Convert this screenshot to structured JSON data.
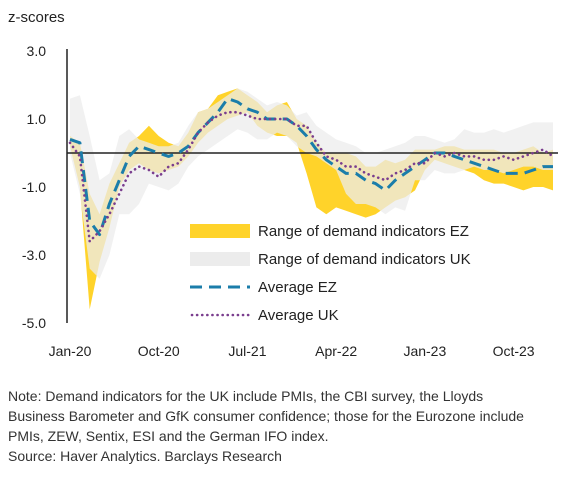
{
  "chart_data": {
    "type": "area",
    "ylabel": "z-scores",
    "ylim": [
      -5.0,
      3.0
    ],
    "yticks": [
      3.0,
      1.0,
      -1.0,
      -3.0,
      -5.0
    ],
    "ytick_labels": [
      "3.0",
      "1.0",
      "-1.0",
      "-3.0",
      "-5.0"
    ],
    "xtick_labels": [
      "Jan-20",
      "Oct-20",
      "Jul-21",
      "Apr-22",
      "Jan-23",
      "Oct-23"
    ],
    "xtick_index": [
      0,
      9,
      18,
      27,
      36,
      45
    ],
    "grid": false,
    "zero_line": true,
    "legend_position": "center-right",
    "x": [
      "Jan-20",
      "Feb-20",
      "Mar-20",
      "Apr-20",
      "May-20",
      "Jun-20",
      "Jul-20",
      "Aug-20",
      "Sep-20",
      "Oct-20",
      "Nov-20",
      "Dec-20",
      "Jan-21",
      "Feb-21",
      "Mar-21",
      "Apr-21",
      "May-21",
      "Jun-21",
      "Jul-21",
      "Aug-21",
      "Sep-21",
      "Oct-21",
      "Nov-21",
      "Dec-21",
      "Jan-22",
      "Feb-22",
      "Mar-22",
      "Apr-22",
      "May-22",
      "Jun-22",
      "Jul-22",
      "Aug-22",
      "Sep-22",
      "Oct-22",
      "Nov-22",
      "Dec-22",
      "Jan-23",
      "Feb-23",
      "Mar-23",
      "Apr-23",
      "May-23",
      "Jun-23",
      "Jul-23",
      "Aug-23",
      "Sep-23",
      "Oct-23",
      "Nov-23",
      "Dec-23",
      "Jan-24",
      "Feb-24"
    ],
    "series": [
      {
        "name": "Range of demand indicators EZ",
        "type": "range",
        "color": "#FFD32A",
        "lower": [
          0.2,
          -1.0,
          -4.6,
          -3.2,
          -2.2,
          -1.0,
          -0.5,
          -0.3,
          -0.5,
          -0.6,
          -0.5,
          -0.4,
          -0.1,
          0.3,
          0.6,
          0.8,
          1.0,
          1.1,
          1.2,
          0.8,
          0.6,
          0.5,
          0.5,
          0.3,
          -0.6,
          -1.6,
          -1.8,
          -1.6,
          -1.7,
          -1.8,
          -1.9,
          -1.8,
          -1.6,
          -1.4,
          -1.3,
          -1.1,
          -0.5,
          -0.2,
          -0.3,
          -0.4,
          -0.5,
          -0.6,
          -0.8,
          -0.9,
          -0.9,
          -1.0,
          -1.1,
          -1.0,
          -1.0,
          -1.1
        ],
        "upper": [
          0.5,
          0.3,
          -1.2,
          -1.8,
          -0.9,
          -0.3,
          0.3,
          0.5,
          0.8,
          0.5,
          0.3,
          0.2,
          0.6,
          1.2,
          1.3,
          1.7,
          1.8,
          1.9,
          1.7,
          1.5,
          1.2,
          1.4,
          1.5,
          1.0,
          0.8,
          0.3,
          0.0,
          0.0,
          0.0,
          -0.1,
          -0.4,
          -0.4,
          -0.2,
          -0.3,
          -0.2,
          0.1,
          0.1,
          0.1,
          0.2,
          0.2,
          0.1,
          0.1,
          0.1,
          0.1,
          0.0,
          0.0,
          0.1,
          0.2,
          0.0,
          0.1
        ]
      },
      {
        "name": "Range of demand indicators UK",
        "type": "range",
        "color": "#ECECEC",
        "lower": [
          0.0,
          -1.2,
          -3.4,
          -3.7,
          -3.0,
          -1.8,
          -1.8,
          -1.5,
          -0.9,
          -1.0,
          -1.1,
          -0.9,
          -0.4,
          -0.1,
          0.1,
          0.3,
          0.5,
          0.7,
          0.6,
          0.4,
          0.4,
          0.6,
          0.5,
          0.2,
          0.0,
          -0.1,
          -0.3,
          -0.5,
          -1.2,
          -1.5,
          -1.5,
          -1.6,
          -1.8,
          -1.6,
          -1.7,
          -0.8,
          -0.8,
          -0.5,
          -0.6,
          -0.6,
          -0.5,
          -0.4,
          -0.5,
          -0.5,
          -0.6,
          -0.5,
          -0.4,
          -0.4,
          -0.5,
          -0.5
        ],
        "upper": [
          1.6,
          1.7,
          0.5,
          -0.8,
          -0.6,
          0.5,
          0.7,
          0.4,
          0.3,
          0.2,
          0.2,
          0.3,
          0.8,
          1.2,
          1.3,
          1.5,
          1.7,
          1.9,
          1.8,
          1.6,
          1.4,
          1.5,
          1.4,
          1.1,
          1.2,
          0.8,
          0.6,
          0.4,
          0.3,
          0.2,
          0.0,
          0.0,
          0.1,
          0.2,
          0.3,
          0.5,
          0.5,
          0.4,
          0.3,
          0.4,
          0.7,
          0.6,
          0.6,
          0.7,
          0.6,
          0.7,
          0.8,
          0.9,
          0.9,
          0.9
        ]
      },
      {
        "name": "Average EZ",
        "type": "line",
        "style": "dashed",
        "color": "#1B7DAA",
        "values": [
          0.4,
          0.3,
          -2.0,
          -2.4,
          -1.5,
          -0.8,
          -0.1,
          0.2,
          0.1,
          0.0,
          -0.1,
          0.0,
          0.2,
          0.6,
          0.9,
          1.2,
          1.6,
          1.5,
          1.3,
          1.2,
          1.0,
          1.0,
          1.0,
          0.8,
          0.5,
          0.1,
          -0.2,
          -0.4,
          -0.6,
          -0.6,
          -0.8,
          -0.9,
          -1.1,
          -0.8,
          -0.6,
          -0.4,
          -0.2,
          0.0,
          0.0,
          -0.1,
          -0.2,
          -0.3,
          -0.4,
          -0.5,
          -0.6,
          -0.6,
          -0.6,
          -0.5,
          -0.4,
          -0.4
        ]
      },
      {
        "name": "Average UK",
        "type": "line",
        "style": "dotted",
        "color": "#7A3E8E",
        "values": [
          0.3,
          -0.1,
          -2.6,
          -2.3,
          -1.8,
          -1.2,
          -0.6,
          -0.4,
          -0.5,
          -0.7,
          -0.4,
          -0.3,
          0.1,
          0.6,
          0.9,
          1.1,
          1.2,
          1.2,
          1.1,
          1.0,
          1.0,
          1.0,
          1.0,
          0.8,
          0.8,
          0.3,
          -0.1,
          -0.2,
          -0.4,
          -0.4,
          -0.6,
          -0.7,
          -0.8,
          -0.6,
          -0.5,
          -0.3,
          -0.3,
          0.0,
          -0.1,
          0.0,
          -0.1,
          -0.1,
          -0.2,
          -0.2,
          -0.1,
          -0.2,
          -0.1,
          0.0,
          0.1,
          -0.1
        ]
      }
    ]
  },
  "footer": {
    "lines": [
      "Note: Demand indicators for the UK include PMIs, the CBI survey, the Lloyds",
      "Business Barometer and GfK consumer confidence; those for the Eurozone include",
      "PMIs, ZEW, Sentix, ESI and the German IFO index.",
      "Source: Haver Analytics. Barclays Research"
    ]
  }
}
